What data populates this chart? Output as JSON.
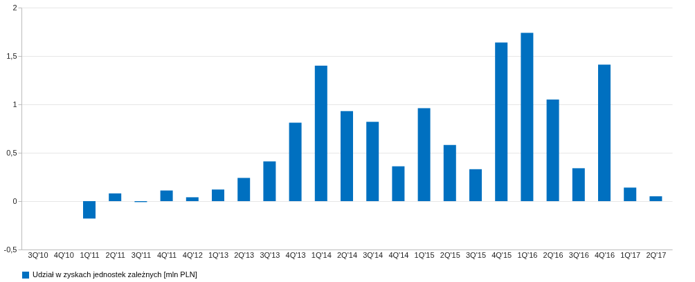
{
  "chart_data": {
    "type": "bar",
    "categories": [
      "3Q'10",
      "4Q'10",
      "1Q'11",
      "2Q'11",
      "3Q'11",
      "4Q'11",
      "4Q'12",
      "1Q'13",
      "2Q'13",
      "3Q'13",
      "4Q'13",
      "1Q'14",
      "2Q'14",
      "3Q'14",
      "4Q'14",
      "1Q'15",
      "2Q'15",
      "3Q'15",
      "4Q'15",
      "1Q'16",
      "2Q'16",
      "3Q'16",
      "4Q'16",
      "1Q'17",
      "2Q'17"
    ],
    "series": [
      {
        "name": "Udział w zyskach jednostek zależnych [mln PLN]",
        "color": "#0070c0",
        "values": [
          0,
          0,
          -0.18,
          0.08,
          -0.01,
          0.11,
          0.04,
          0.12,
          0.24,
          0.41,
          0.81,
          1.4,
          0.93,
          0.82,
          0.36,
          0.96,
          0.58,
          0.33,
          1.64,
          1.74,
          1.05,
          0.34,
          1.41,
          0.14,
          0.05
        ]
      }
    ],
    "ylim": [
      -0.5,
      2
    ],
    "yticks": [
      {
        "value": -0.5,
        "label": "-0,5"
      },
      0,
      {
        "value": 0.5,
        "label": "0,5"
      },
      1,
      {
        "value": 1.5,
        "label": "1,5"
      },
      2
    ],
    "grid": "y",
    "legend": "bottom"
  }
}
